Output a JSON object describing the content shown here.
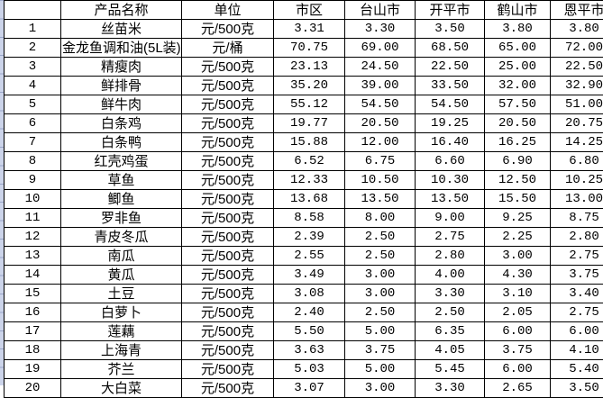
{
  "sheet": {
    "gutter_color": "#ccd4ea",
    "border_color": "#000000",
    "text_color": "#000000"
  },
  "table": {
    "columns": {
      "row_number_header": "",
      "product_name": "产品名称",
      "unit": "单位",
      "cities": [
        "市区",
        "台山市",
        "开平市",
        "鹤山市",
        "恩平市"
      ]
    },
    "rows": [
      {
        "no": "1",
        "name": "丝苗米",
        "unit": "元/500克",
        "prices": [
          "3.31",
          "3.30",
          "3.50",
          "3.80",
          "3.80"
        ]
      },
      {
        "no": "2",
        "name": "金龙鱼调和油(5L装)",
        "unit": "元/桶",
        "prices": [
          "70.75",
          "69.00",
          "68.50",
          "65.00",
          "72.00"
        ]
      },
      {
        "no": "3",
        "name": "精瘦肉",
        "unit": "元/500克",
        "prices": [
          "23.13",
          "24.50",
          "22.50",
          "25.00",
          "22.50"
        ]
      },
      {
        "no": "4",
        "name": "鲜排骨",
        "unit": "元/500克",
        "prices": [
          "35.20",
          "39.00",
          "33.50",
          "32.00",
          "32.90"
        ]
      },
      {
        "no": "5",
        "name": "鲜牛肉",
        "unit": "元/500克",
        "prices": [
          "55.12",
          "54.50",
          "54.50",
          "57.50",
          "51.00"
        ]
      },
      {
        "no": "6",
        "name": "白条鸡",
        "unit": "元/500克",
        "prices": [
          "19.77",
          "20.50",
          "19.25",
          "20.50",
          "20.75"
        ]
      },
      {
        "no": "7",
        "name": "白条鸭",
        "unit": "元/500克",
        "prices": [
          "15.88",
          "12.00",
          "16.40",
          "16.25",
          "14.25"
        ]
      },
      {
        "no": "8",
        "name": "红壳鸡蛋",
        "unit": "元/500克",
        "prices": [
          "6.52",
          "6.75",
          "6.60",
          "6.90",
          "6.80"
        ]
      },
      {
        "no": "9",
        "name": "草鱼",
        "unit": "元/500克",
        "prices": [
          "12.33",
          "10.50",
          "10.30",
          "12.50",
          "10.25"
        ]
      },
      {
        "no": "10",
        "name": "鲫鱼",
        "unit": "元/500克",
        "prices": [
          "13.68",
          "13.50",
          "13.50",
          "15.50",
          "13.00"
        ]
      },
      {
        "no": "11",
        "name": "罗非鱼",
        "unit": "元/500克",
        "prices": [
          "8.58",
          "8.00",
          "9.00",
          "9.25",
          "8.75"
        ]
      },
      {
        "no": "12",
        "name": "青皮冬瓜",
        "unit": "元/500克",
        "prices": [
          "2.39",
          "2.50",
          "2.75",
          "2.25",
          "2.80"
        ]
      },
      {
        "no": "13",
        "name": "南瓜",
        "unit": "元/500克",
        "prices": [
          "2.55",
          "2.50",
          "2.80",
          "3.00",
          "2.75"
        ]
      },
      {
        "no": "14",
        "name": "黄瓜",
        "unit": "元/500克",
        "prices": [
          "3.49",
          "3.00",
          "4.00",
          "4.30",
          "3.75"
        ]
      },
      {
        "no": "15",
        "name": "土豆",
        "unit": "元/500克",
        "prices": [
          "3.08",
          "3.00",
          "3.30",
          "3.10",
          "3.40"
        ]
      },
      {
        "no": "16",
        "name": "白萝卜",
        "unit": "元/500克",
        "prices": [
          "2.40",
          "2.50",
          "2.50",
          "2.05",
          "2.75"
        ]
      },
      {
        "no": "17",
        "name": "莲藕",
        "unit": "元/500克",
        "prices": [
          "5.50",
          "5.00",
          "6.35",
          "6.00",
          "6.00"
        ]
      },
      {
        "no": "18",
        "name": "上海青",
        "unit": "元/500克",
        "prices": [
          "3.63",
          "3.75",
          "4.05",
          "3.75",
          "4.10"
        ]
      },
      {
        "no": "19",
        "name": "芥兰",
        "unit": "元/500克",
        "prices": [
          "5.03",
          "5.00",
          "5.45",
          "6.00",
          "5.40"
        ]
      },
      {
        "no": "20",
        "name": "大白菜",
        "unit": "元/500克",
        "prices": [
          "3.07",
          "3.00",
          "3.30",
          "2.65",
          "3.50"
        ]
      }
    ]
  }
}
